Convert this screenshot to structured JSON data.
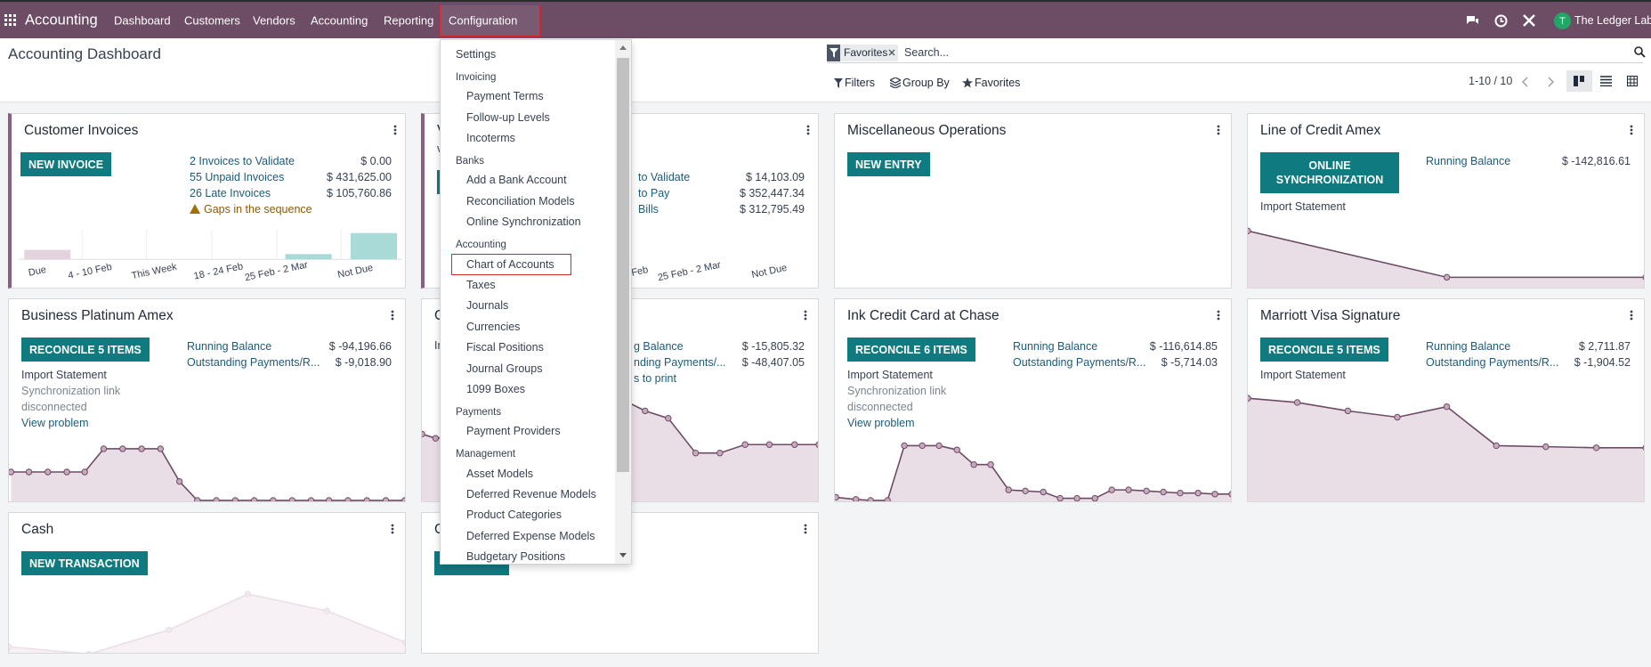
{
  "navbar": {
    "app": "Accounting",
    "menu": [
      "Dashboard",
      "Customers",
      "Vendors",
      "Accounting",
      "Reporting",
      "Configuration"
    ],
    "company_initial": "T",
    "company": "The Ledger Labs"
  },
  "control_panel": {
    "title": "Accounting Dashboard",
    "facet": "Favorites",
    "search_placeholder": "Search...",
    "filters": "Filters",
    "group_by": "Group By",
    "favorites": "Favorites",
    "pager": "1-10 / 10"
  },
  "cards": [
    {
      "title": "Customer Invoices",
      "button": "NEW INVOICE",
      "rows": [
        {
          "label": "2 Invoices to Validate",
          "value": "$ 0.00"
        },
        {
          "label": "55 Unpaid Invoices",
          "value": "$ 431,625.00"
        },
        {
          "label": "26 Late Invoices",
          "value": "$ 105,760.86"
        }
      ],
      "warning": "Gaps in the sequence",
      "chart_labels": [
        "Due",
        "4 - 10 Feb",
        "This Week",
        "18 - 24 Feb",
        "25 Feb - 2 Mar",
        "Not Due"
      ]
    },
    {
      "title": "V",
      "subtitle": "v",
      "rows": [
        {
          "label": "to Validate",
          "value": "$ 14,103.09"
        },
        {
          "label": "to Pay",
          "value": "$ 352,447.34"
        },
        {
          "label": "Bills",
          "value": "$ 312,795.49"
        }
      ],
      "chart_labels": [
        "Feb",
        "25 Feb - 2 Mar",
        "Not Due"
      ]
    },
    {
      "title": "Miscellaneous Operations",
      "button": "NEW ENTRY"
    },
    {
      "title": "Line of Credit Amex",
      "button": "ONLINE SYNCHRONIZATION",
      "rows": [
        {
          "label": "Running Balance",
          "value": "$ -142,816.61"
        }
      ],
      "notes": [
        "Import Statement"
      ]
    },
    {
      "title": "Business Platinum Amex",
      "button": "RECONCILE 5 ITEMS",
      "rows": [
        {
          "label": "Running Balance",
          "value": "$ -94,196.66"
        },
        {
          "label": "Outstanding Payments/R...",
          "value": "$ -9,018.90"
        }
      ],
      "notes": [
        "Import Statement",
        "Synchronization link",
        "disconnected",
        "View problem"
      ]
    },
    {
      "title": "C",
      "rows": [
        {
          "label": "g Balance",
          "value": "$ -15,805.32"
        },
        {
          "label": "nding Payments/...",
          "value": "$ -48,407.05"
        },
        {
          "label": "s to print"
        }
      ],
      "notes": [
        "In"
      ]
    },
    {
      "title": "Ink Credit Card at Chase",
      "button": "RECONCILE 6 ITEMS",
      "rows": [
        {
          "label": "Running Balance",
          "value": "$ -116,614.85"
        },
        {
          "label": "Outstanding Payments/R...",
          "value": "$ -5,714.03"
        }
      ],
      "notes": [
        "Import Statement",
        "Synchronization link",
        "disconnected",
        "View problem"
      ]
    },
    {
      "title": "Marriott Visa Signature",
      "button": "RECONCILE 5 ITEMS",
      "rows": [
        {
          "label": "Running Balance",
          "value": "$ 2,711.87"
        },
        {
          "label": "Outstanding Payments/R...",
          "value": "$ -1,904.52"
        }
      ],
      "notes": [
        "Import Statement"
      ]
    },
    {
      "title": "Cash",
      "button": "NEW TRANSACTION"
    },
    {
      "title": "C"
    }
  ],
  "dropdown": {
    "sections": [
      {
        "items": [
          "Settings"
        ]
      },
      {
        "header": "Invoicing",
        "items": [
          "Payment Terms",
          "Follow-up Levels",
          "Incoterms"
        ]
      },
      {
        "header": "Banks",
        "items": [
          "Add a Bank Account",
          "Reconciliation Models",
          "Online Synchronization"
        ]
      },
      {
        "header": "Accounting",
        "items": [
          "Chart of Accounts",
          "Taxes",
          "Journals",
          "Currencies",
          "Fiscal Positions",
          "Journal Groups",
          "1099 Boxes"
        ]
      },
      {
        "header": "Payments",
        "items": [
          "Payment Providers"
        ]
      },
      {
        "header": "Management",
        "items": [
          "Asset Models",
          "Deferred Revenue Models",
          "Product Categories",
          "Deferred Expense Models",
          "Budgetary Positions"
        ]
      }
    ]
  }
}
